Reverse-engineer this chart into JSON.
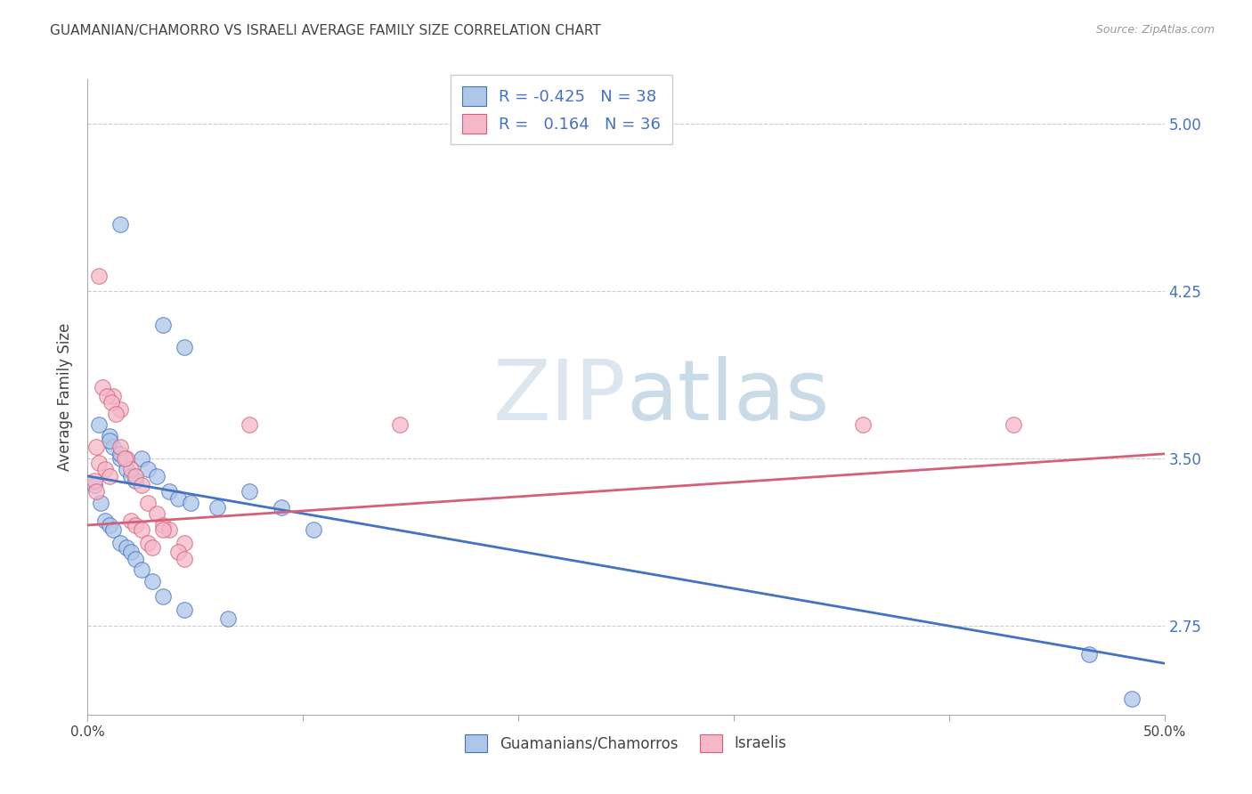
{
  "title": "GUAMANIAN/CHAMORRO VS ISRAELI AVERAGE FAMILY SIZE CORRELATION CHART",
  "source": "Source: ZipAtlas.com",
  "ylabel": "Average Family Size",
  "right_yticks": [
    2.75,
    3.5,
    4.25,
    5.0
  ],
  "xlim": [
    0.0,
    50.0
  ],
  "ylim": [
    2.35,
    5.2
  ],
  "blue_R": "-0.425",
  "blue_N": "38",
  "pink_R": "0.164",
  "pink_N": "36",
  "legend_label_blue": "Guamanians/Chamorros",
  "legend_label_pink": "Israelis",
  "blue_scatter_color": "#aec6e8",
  "blue_line_color": "#4472c4",
  "pink_scatter_color": "#f5b8c8",
  "pink_line_color": "#d4607a",
  "background_color": "#ffffff",
  "grid_color": "#cccccc",
  "title_color": "#444444",
  "right_axis_color": "#4472c4",
  "watermark_color": "#ccd9e8",
  "blue_scatter_x": [
    1.5,
    3.5,
    4.5,
    0.5,
    1.0,
    1.2,
    1.5,
    1.8,
    2.0,
    2.2,
    2.5,
    2.8,
    3.2,
    3.8,
    4.2,
    4.8,
    6.0,
    7.5,
    9.0,
    10.5,
    0.3,
    0.6,
    0.8,
    1.0,
    1.2,
    1.5,
    1.8,
    2.0,
    2.2,
    2.5,
    3.0,
    3.5,
    4.5,
    6.5,
    46.5,
    48.5,
    1.0,
    1.5
  ],
  "blue_scatter_y": [
    4.55,
    4.1,
    4.0,
    3.65,
    3.6,
    3.55,
    3.5,
    3.45,
    3.42,
    3.4,
    3.5,
    3.45,
    3.42,
    3.35,
    3.32,
    3.3,
    3.28,
    3.35,
    3.28,
    3.18,
    3.38,
    3.3,
    3.22,
    3.2,
    3.18,
    3.12,
    3.1,
    3.08,
    3.05,
    3.0,
    2.95,
    2.88,
    2.82,
    2.78,
    2.62,
    2.42,
    3.58,
    3.52
  ],
  "pink_scatter_x": [
    0.4,
    0.5,
    0.8,
    1.0,
    1.2,
    1.5,
    1.8,
    2.0,
    2.2,
    2.5,
    2.8,
    3.2,
    3.5,
    3.8,
    4.5,
    7.5,
    14.5,
    0.5,
    0.7,
    0.9,
    1.1,
    1.3,
    1.5,
    1.7,
    2.0,
    2.2,
    2.5,
    2.8,
    3.0,
    3.5,
    4.2,
    36.0,
    43.0,
    4.5,
    0.3,
    0.4
  ],
  "pink_scatter_y": [
    3.55,
    3.48,
    3.45,
    3.42,
    3.78,
    3.72,
    3.5,
    3.45,
    3.42,
    3.38,
    3.3,
    3.25,
    3.2,
    3.18,
    3.12,
    3.65,
    3.65,
    4.32,
    3.82,
    3.78,
    3.75,
    3.7,
    3.55,
    3.5,
    3.22,
    3.2,
    3.18,
    3.12,
    3.1,
    3.18,
    3.08,
    3.65,
    3.65,
    3.05,
    3.4,
    3.35
  ],
  "blue_line_x": [
    0.0,
    50.0
  ],
  "blue_line_y": [
    3.42,
    2.58
  ],
  "pink_line_x": [
    0.0,
    50.0
  ],
  "pink_line_y": [
    3.2,
    3.52
  ],
  "xtick_positions": [
    0,
    10,
    20,
    30,
    40,
    50
  ],
  "xtick_labels": [
    "0.0%",
    "",
    "",
    "",
    "",
    "50.0%"
  ]
}
